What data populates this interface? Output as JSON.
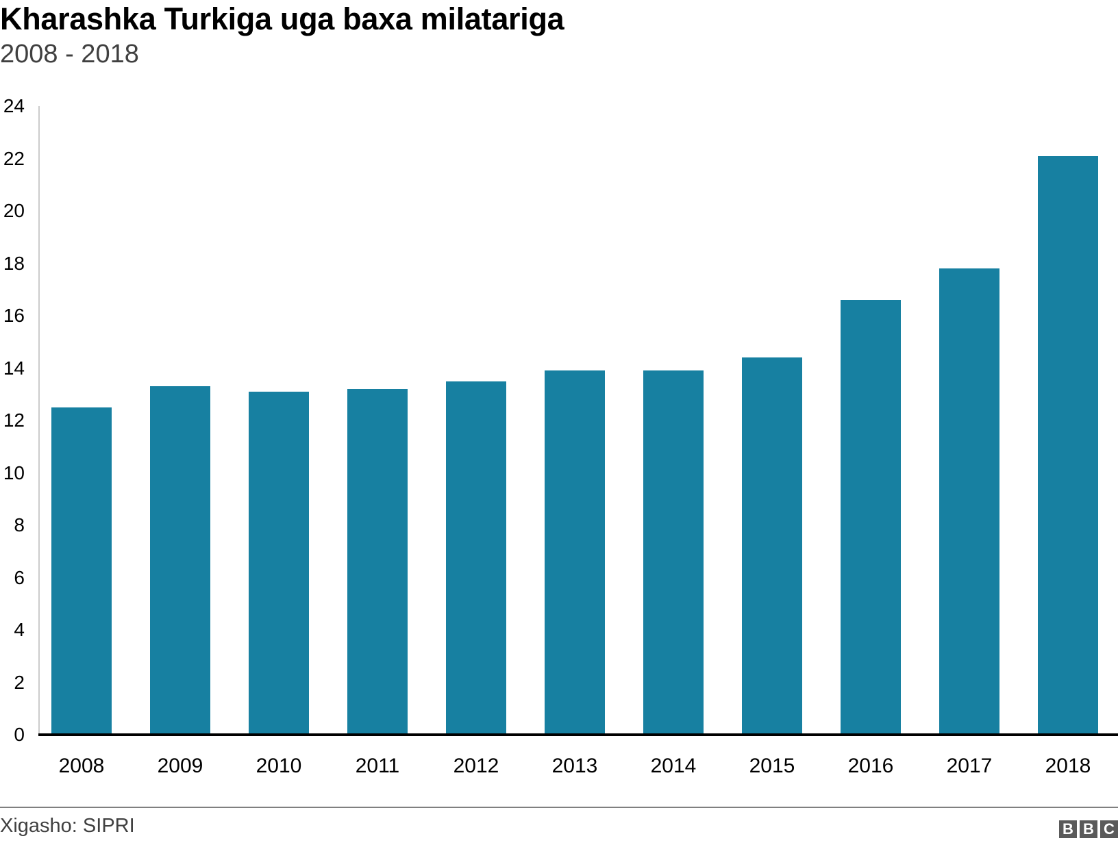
{
  "header": {
    "title": "Kharashka Turkiga uga baxa milatariga",
    "subtitle": "2008 - 2018"
  },
  "footer": {
    "source": "Xigasho: SIPRI",
    "logo": [
      "B",
      "B",
      "C"
    ]
  },
  "colors": {
    "bar": "#1780a1",
    "axis": "#000000",
    "gridline": "#cccccc",
    "subtitle": "#404040"
  },
  "chart_data": {
    "type": "bar",
    "title": "Kharashka Turkiga uga baxa milatariga",
    "subtitle": "2008 - 2018",
    "xlabel": "",
    "ylabel": "",
    "categories": [
      "2008",
      "2009",
      "2010",
      "2011",
      "2012",
      "2013",
      "2014",
      "2015",
      "2016",
      "2017",
      "2018"
    ],
    "values": [
      12.5,
      13.3,
      13.1,
      13.2,
      13.5,
      13.9,
      13.9,
      14.4,
      16.6,
      17.8,
      22.1
    ],
    "ylim": [
      0,
      24
    ],
    "yticks": [
      "0",
      "2",
      "4",
      "6",
      "8",
      "10",
      "12",
      "14",
      "16",
      "18",
      "20",
      "22",
      "24"
    ],
    "grid": false,
    "legend": null,
    "source": "Xigasho: SIPRI"
  }
}
